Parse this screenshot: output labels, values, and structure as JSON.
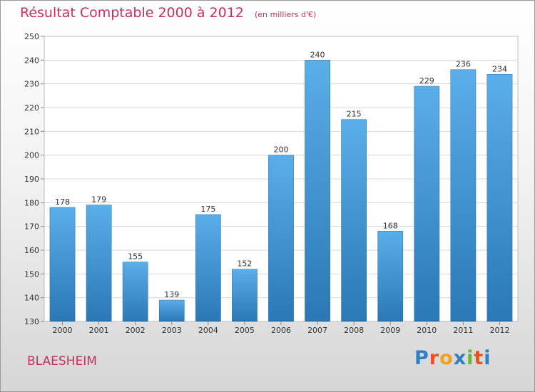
{
  "title": "Résultat Comptable 2000 à 2012",
  "subtitle": "(en milliers d'€)",
  "commune": "BLAESHEIM",
  "logo": {
    "letters": [
      "P",
      "r",
      "o",
      "x",
      "i",
      "t",
      "i"
    ],
    "colors": [
      "#2f7fc1",
      "#e8531c",
      "#f0a21c",
      "#2f7fc1",
      "#6bb33a",
      "#e8531c",
      "#2f7fc1"
    ]
  },
  "chart_data": {
    "type": "bar",
    "categories": [
      "2000",
      "2001",
      "2002",
      "2003",
      "2004",
      "2005",
      "2006",
      "2007",
      "2008",
      "2009",
      "2010",
      "2011",
      "2012"
    ],
    "values": [
      178,
      179,
      155,
      139,
      175,
      152,
      200,
      240,
      215,
      168,
      229,
      236,
      234
    ],
    "title": "Résultat Comptable 2000 à 2012",
    "subtitle": "(en milliers d'€)",
    "xlabel": "",
    "ylabel": "",
    "ylim": [
      130,
      250
    ],
    "yticks": [
      130,
      140,
      150,
      160,
      170,
      180,
      190,
      200,
      210,
      220,
      230,
      240,
      250
    ],
    "grid": true,
    "bar_color_top": "#5aaee9",
    "bar_color_bottom": "#2a78b6"
  }
}
